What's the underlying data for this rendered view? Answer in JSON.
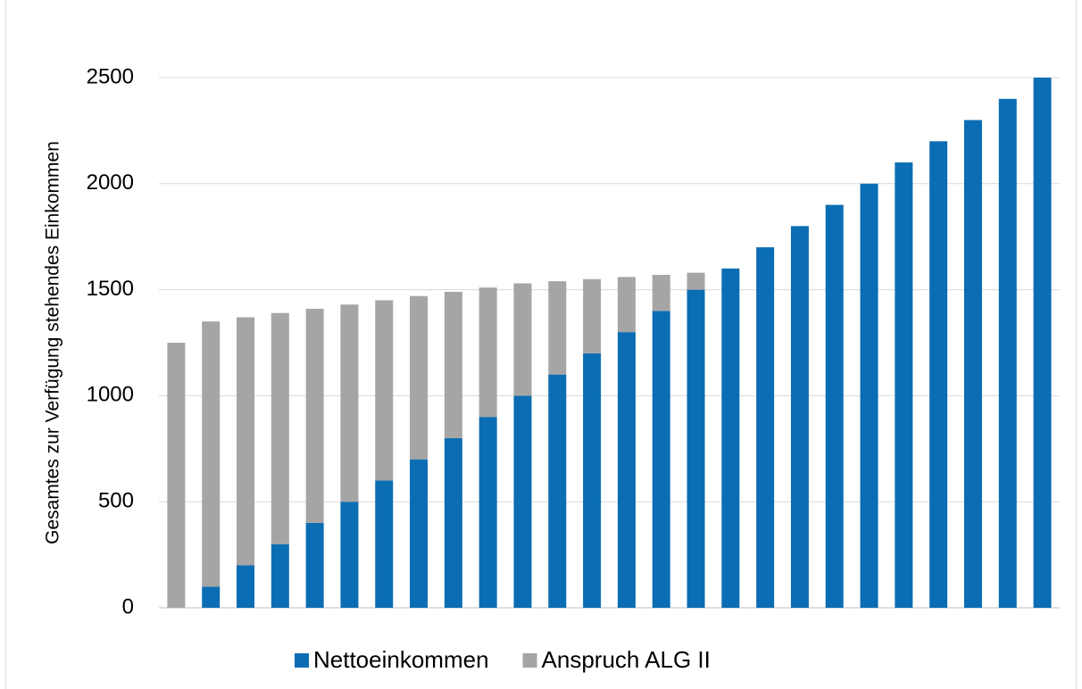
{
  "chart_data": {
    "type": "stacked_bar",
    "y_label": "Gesamtes zur Verfügung stehendes Einkommen",
    "categories": [
      null,
      null,
      null,
      null,
      null,
      null,
      null,
      null,
      null,
      null,
      null,
      null,
      null,
      null,
      null,
      null,
      null,
      null,
      null,
      null,
      null,
      null,
      null,
      null,
      null,
      null
    ],
    "series": [
      {
        "name": "Nettoeinkommen",
        "color": "#0b6db3",
        "values": [
          0,
          100,
          200,
          300,
          400,
          500,
          600,
          700,
          800,
          900,
          1000,
          1100,
          1200,
          1300,
          1400,
          1500,
          1600,
          1700,
          1800,
          1900,
          2000,
          2100,
          2200,
          2300,
          2400,
          2500
        ]
      },
      {
        "name": "Anspruch ALG II",
        "color": "#a5a5a5",
        "values": [
          1250,
          1250,
          1170,
          1090,
          1010,
          930,
          850,
          770,
          690,
          610,
          530,
          440,
          350,
          260,
          170,
          80,
          0,
          0,
          0,
          0,
          0,
          0,
          0,
          0,
          0,
          0
        ]
      }
    ],
    "ylim": [
      0,
      2500
    ],
    "yticks": [
      0,
      500,
      1000,
      1500,
      2000,
      2500
    ],
    "grid": true,
    "legend": "bottom"
  }
}
